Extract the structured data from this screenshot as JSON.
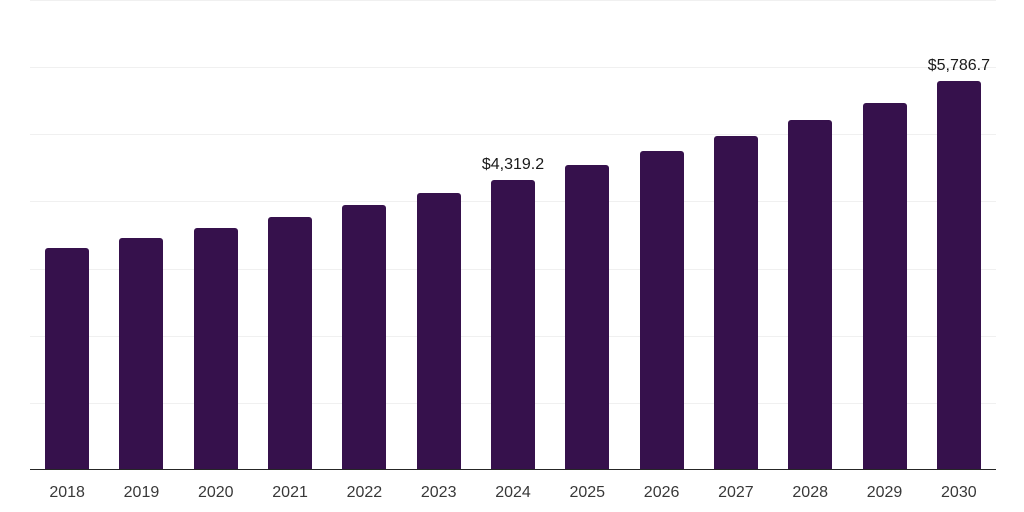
{
  "chart_data": {
    "type": "bar",
    "title": "",
    "xlabel": "",
    "ylabel": "",
    "categories": [
      "2018",
      "2019",
      "2020",
      "2021",
      "2022",
      "2023",
      "2024",
      "2025",
      "2026",
      "2027",
      "2028",
      "2029",
      "2030"
    ],
    "values": [
      3310,
      3460,
      3610,
      3770,
      3940,
      4120,
      4319.2,
      4540,
      4750,
      4975,
      5215,
      5465,
      5786.7
    ],
    "data_labels": {
      "2024": "$4,319.2",
      "2030": "$5,786.7"
    },
    "ylim": [
      0,
      7000
    ],
    "gridline_step": 1000,
    "grid": "horizontal-only",
    "legend": "none",
    "colors": {
      "bar": "#36114C",
      "gridline": "#F0F0F0",
      "axis_line": "#262626",
      "data_label_text": "#1A1A1A",
      "tick_label_text": "#383838",
      "background": "#FFFFFF"
    }
  }
}
